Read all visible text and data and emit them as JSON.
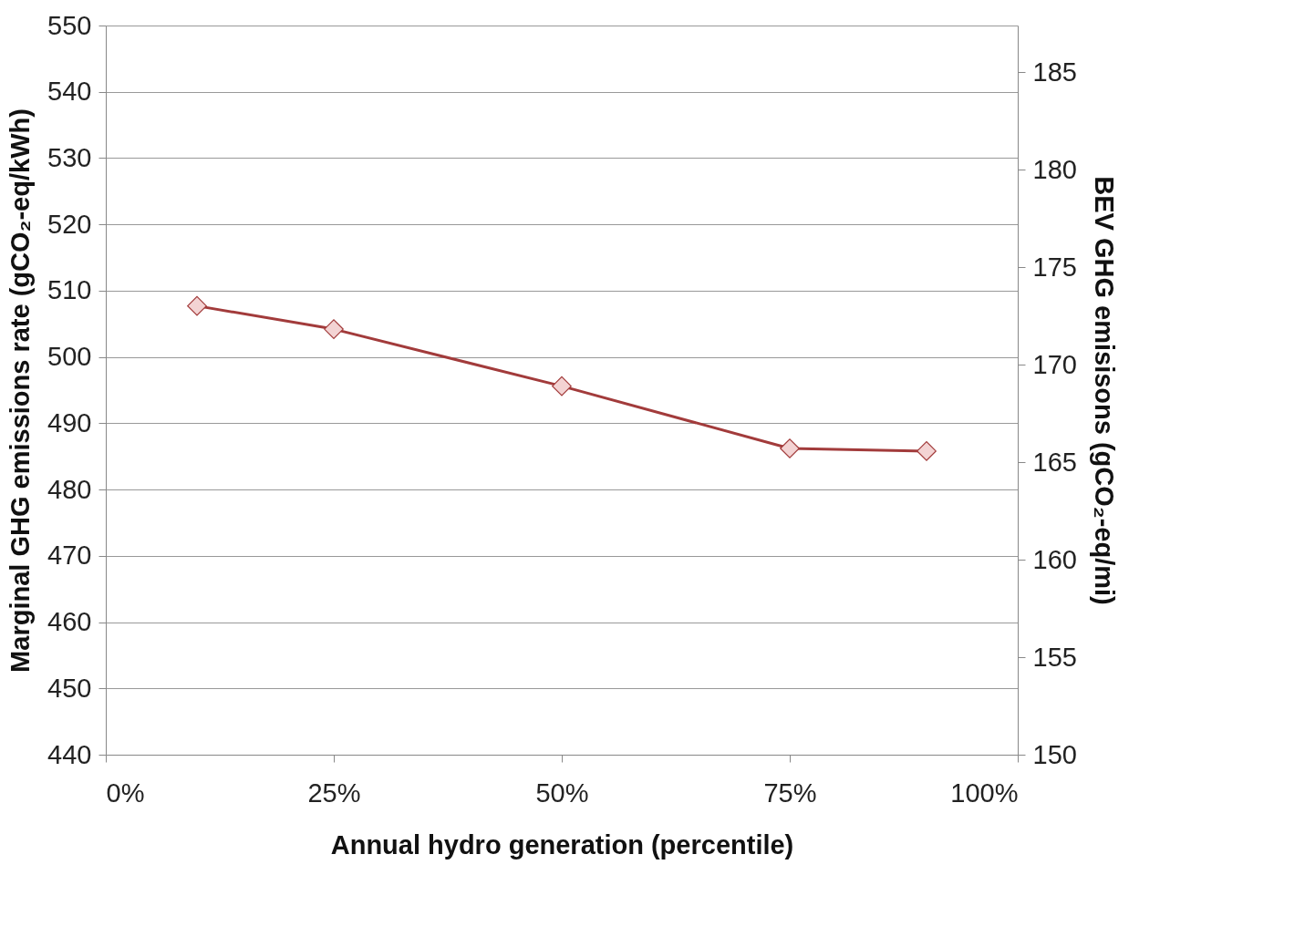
{
  "chart_data": {
    "type": "line",
    "xlabel": "Annual hydro generation (percentile)",
    "ylabel": "Marginal GHG emissions rate (gCO₂-eq/kWh)",
    "y2label": "BEV GHG emisisons (gCO₂-eq/mi)",
    "x": [
      10,
      25,
      50,
      75,
      90
    ],
    "series": [
      {
        "color": "#a23b3b",
        "values": [
          507.7,
          504.2,
          495.6,
          486.2,
          485.8
        ]
      }
    ],
    "xlim": [
      0,
      100
    ],
    "xticks": [
      {
        "value": 0,
        "label": "0%"
      },
      {
        "value": 25,
        "label": "25%"
      },
      {
        "value": 50,
        "label": "50%"
      },
      {
        "value": 75,
        "label": "75%"
      },
      {
        "value": 100,
        "label": "100%"
      }
    ],
    "ylim": [
      440,
      550
    ],
    "yticks": [
      440,
      450,
      460,
      470,
      480,
      490,
      500,
      510,
      520,
      530,
      540,
      550
    ],
    "y2lim": [
      150,
      187.4
    ],
    "y2ticks": [
      150,
      155,
      160,
      165,
      170,
      175,
      180,
      185
    ],
    "grid": "y",
    "marker": "diamond",
    "line_style": "solid"
  }
}
